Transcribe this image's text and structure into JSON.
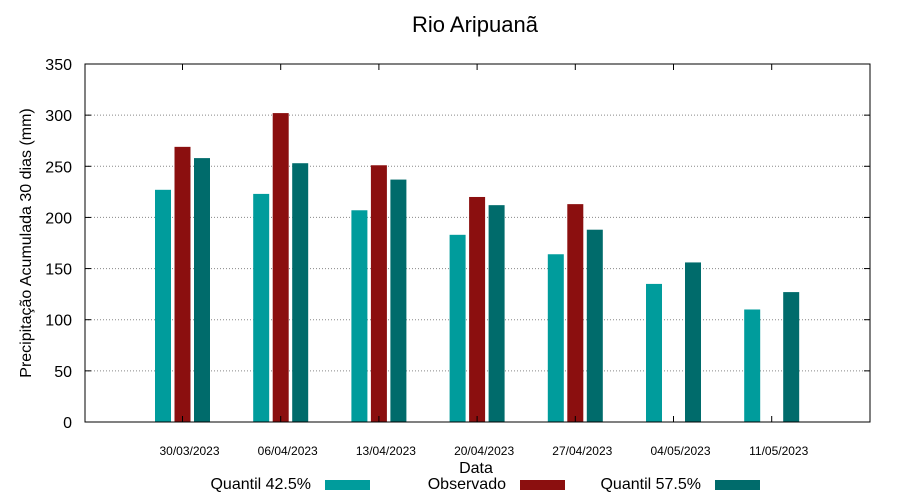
{
  "chart_data": {
    "type": "bar",
    "title": "Rio Aripuanã",
    "xlabel": "Data",
    "ylabel": "Precipitação Acumulada 30 dias (mm)",
    "ylim": [
      0,
      350
    ],
    "yticks": [
      0,
      50,
      100,
      150,
      200,
      250,
      300,
      350
    ],
    "grid": true,
    "legend_position": "bottom",
    "categories": [
      "30/03/2023",
      "06/04/2023",
      "13/04/2023",
      "20/04/2023",
      "27/04/2023",
      "04/05/2023",
      "11/05/2023"
    ],
    "series": [
      {
        "name": "Quantil 42.5%",
        "color": "#009c9c",
        "values": [
          227,
          223,
          207,
          183,
          164,
          135,
          110
        ]
      },
      {
        "name": "Observado",
        "color": "#8b0f0f",
        "values": [
          269,
          302,
          251,
          220,
          213,
          null,
          null
        ]
      },
      {
        "name": "Quantil 57.5%",
        "color": "#006b6b",
        "values": [
          258,
          253,
          237,
          212,
          188,
          156,
          127
        ]
      }
    ]
  }
}
